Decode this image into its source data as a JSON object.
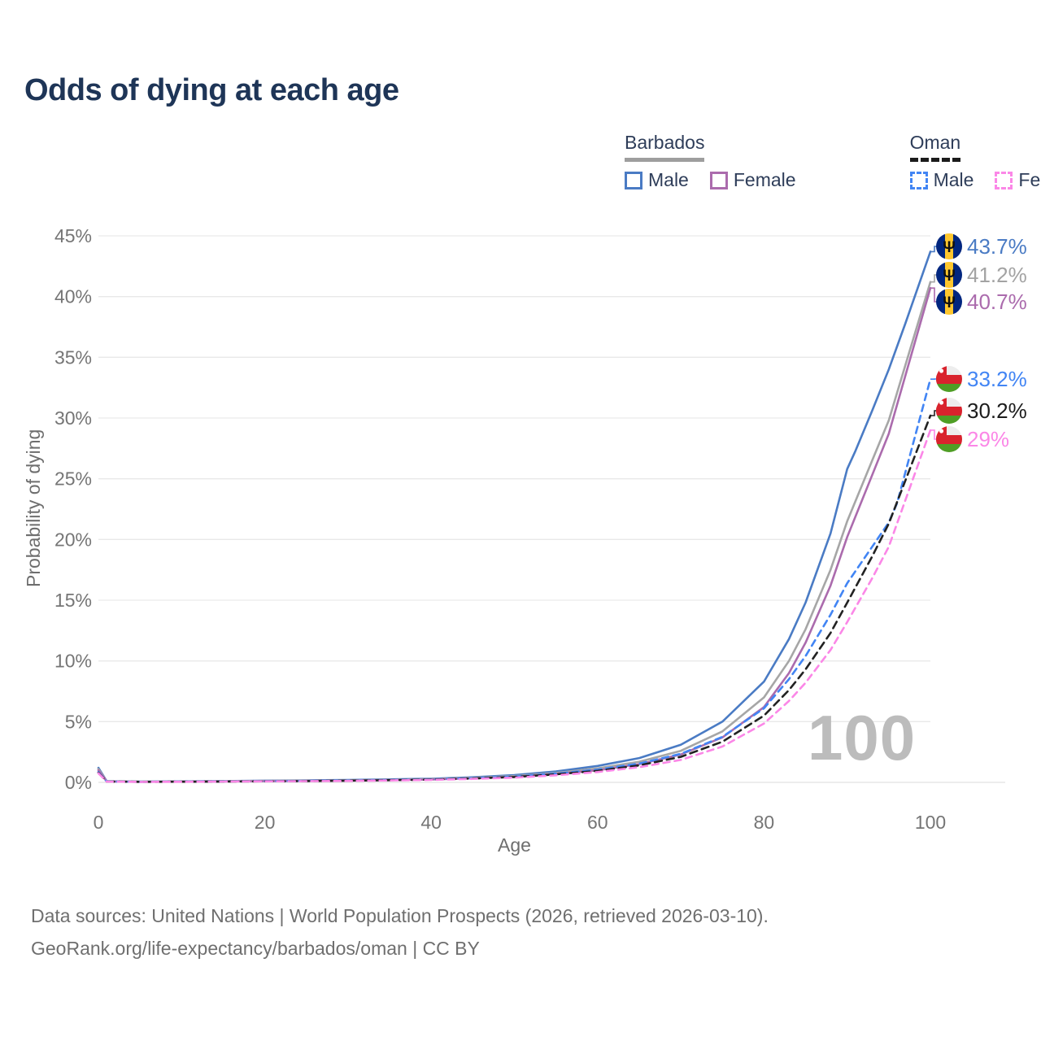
{
  "title": "Odds of dying at each age",
  "watermark": "100",
  "legend": {
    "groups": [
      {
        "label": "Barbados",
        "line_style": "solid",
        "underline_color": "#9e9e9e",
        "items": [
          {
            "label": "Male",
            "color": "#4a7bc4"
          },
          {
            "label": "Female",
            "color": "#ab6bad"
          }
        ]
      },
      {
        "label": "Oman",
        "line_style": "dashed",
        "underline_color": "#1b1b1b",
        "items": [
          {
            "label": "Male",
            "color": "#4285f4"
          },
          {
            "label": "Female",
            "color": "#fb87e7"
          }
        ]
      }
    ]
  },
  "chart_data": {
    "type": "line",
    "title": "Odds of dying at each age",
    "xlabel": "Age",
    "ylabel": "Probability of dying",
    "xlim": [
      0,
      100
    ],
    "ylim": [
      0,
      45
    ],
    "x_ticks": [
      0,
      20,
      40,
      60,
      80,
      100
    ],
    "y_ticks": [
      0,
      5,
      10,
      15,
      20,
      25,
      30,
      35,
      40,
      45
    ],
    "y_tick_labels": [
      "0%",
      "5%",
      "10%",
      "15%",
      "20%",
      "25%",
      "30%",
      "35%",
      "40%",
      "45%"
    ],
    "grid": "horizontal",
    "legend_position": "top-right",
    "series": [
      {
        "name": "Barbados Male",
        "country": "Barbados",
        "sex": "Male",
        "color": "#4a7bc4",
        "dash": null,
        "flag": "barbados",
        "end_label": "43.7%",
        "end_value": 43.7,
        "points": [
          [
            0,
            1.2
          ],
          [
            1,
            0.1
          ],
          [
            5,
            0.07
          ],
          [
            10,
            0.08
          ],
          [
            15,
            0.11
          ],
          [
            20,
            0.14
          ],
          [
            25,
            0.17
          ],
          [
            30,
            0.2
          ],
          [
            35,
            0.25
          ],
          [
            40,
            0.3
          ],
          [
            45,
            0.42
          ],
          [
            50,
            0.6
          ],
          [
            55,
            0.9
          ],
          [
            60,
            1.35
          ],
          [
            65,
            2.0
          ],
          [
            70,
            3.1
          ],
          [
            75,
            5.0
          ],
          [
            80,
            8.3
          ],
          [
            83,
            11.8
          ],
          [
            85,
            14.8
          ],
          [
            88,
            20.5
          ],
          [
            90,
            25.8
          ],
          [
            91,
            27.3
          ],
          [
            93,
            30.6
          ],
          [
            95,
            34.0
          ],
          [
            97,
            37.8
          ],
          [
            100,
            43.7
          ]
        ]
      },
      {
        "name": "Barbados Both sexes",
        "country": "Barbados",
        "sex": "Both",
        "color": "#a6a6a6",
        "dash": null,
        "flag": "barbados",
        "end_label": "41.2%",
        "end_value": 41.2,
        "points": [
          [
            0,
            1.1
          ],
          [
            1,
            0.09
          ],
          [
            5,
            0.06
          ],
          [
            10,
            0.07
          ],
          [
            15,
            0.1
          ],
          [
            20,
            0.12
          ],
          [
            25,
            0.15
          ],
          [
            30,
            0.17
          ],
          [
            35,
            0.21
          ],
          [
            40,
            0.27
          ],
          [
            45,
            0.38
          ],
          [
            50,
            0.52
          ],
          [
            55,
            0.78
          ],
          [
            60,
            1.15
          ],
          [
            65,
            1.7
          ],
          [
            70,
            2.6
          ],
          [
            75,
            4.2
          ],
          [
            80,
            7.0
          ],
          [
            83,
            10.0
          ],
          [
            85,
            12.6
          ],
          [
            88,
            17.5
          ],
          [
            90,
            21.5
          ],
          [
            93,
            26.5
          ],
          [
            95,
            29.8
          ],
          [
            100,
            41.2
          ]
        ]
      },
      {
        "name": "Barbados Female",
        "country": "Barbados",
        "sex": "Female",
        "color": "#ab6bad",
        "dash": null,
        "flag": "barbados",
        "end_label": "40.7%",
        "end_value": 40.7,
        "points": [
          [
            0,
            1.0
          ],
          [
            1,
            0.08
          ],
          [
            5,
            0.05
          ],
          [
            10,
            0.06
          ],
          [
            15,
            0.08
          ],
          [
            20,
            0.1
          ],
          [
            25,
            0.12
          ],
          [
            30,
            0.15
          ],
          [
            35,
            0.19
          ],
          [
            40,
            0.24
          ],
          [
            45,
            0.34
          ],
          [
            50,
            0.46
          ],
          [
            55,
            0.7
          ],
          [
            60,
            1.0
          ],
          [
            65,
            1.5
          ],
          [
            70,
            2.3
          ],
          [
            75,
            3.7
          ],
          [
            80,
            6.2
          ],
          [
            83,
            9.0
          ],
          [
            85,
            11.5
          ],
          [
            88,
            16.2
          ],
          [
            90,
            20.2
          ],
          [
            93,
            25.3
          ],
          [
            95,
            28.7
          ],
          [
            100,
            40.7
          ]
        ]
      },
      {
        "name": "Oman Male",
        "country": "Oman",
        "sex": "Male",
        "color": "#4285f4",
        "dash": "8 6",
        "flag": "oman",
        "end_label": "33.2%",
        "end_value": 33.2,
        "points": [
          [
            0,
            0.85
          ],
          [
            1,
            0.07
          ],
          [
            5,
            0.05
          ],
          [
            10,
            0.06
          ],
          [
            15,
            0.08
          ],
          [
            20,
            0.1
          ],
          [
            25,
            0.12
          ],
          [
            30,
            0.15
          ],
          [
            35,
            0.19
          ],
          [
            40,
            0.25
          ],
          [
            45,
            0.35
          ],
          [
            50,
            0.48
          ],
          [
            55,
            0.72
          ],
          [
            60,
            1.05
          ],
          [
            65,
            1.55
          ],
          [
            70,
            2.35
          ],
          [
            75,
            3.75
          ],
          [
            80,
            6.1
          ],
          [
            83,
            8.5
          ],
          [
            85,
            10.4
          ],
          [
            88,
            13.8
          ],
          [
            90,
            16.4
          ],
          [
            93,
            19.4
          ],
          [
            95,
            21.4
          ],
          [
            96,
            23.0
          ],
          [
            100,
            33.2
          ]
        ]
      },
      {
        "name": "Oman Both sexes",
        "country": "Oman",
        "sex": "Both",
        "color": "#222222",
        "dash": "9 6",
        "flag": "oman",
        "end_label": "30.2%",
        "end_value": 30.2,
        "points": [
          [
            0,
            0.8
          ],
          [
            1,
            0.065
          ],
          [
            5,
            0.045
          ],
          [
            10,
            0.055
          ],
          [
            15,
            0.07
          ],
          [
            20,
            0.09
          ],
          [
            25,
            0.11
          ],
          [
            30,
            0.14
          ],
          [
            35,
            0.18
          ],
          [
            40,
            0.23
          ],
          [
            45,
            0.32
          ],
          [
            50,
            0.44
          ],
          [
            55,
            0.66
          ],
          [
            60,
            0.95
          ],
          [
            65,
            1.4
          ],
          [
            70,
            2.1
          ],
          [
            75,
            3.35
          ],
          [
            80,
            5.5
          ],
          [
            83,
            7.6
          ],
          [
            85,
            9.3
          ],
          [
            88,
            12.3
          ],
          [
            90,
            14.8
          ],
          [
            93,
            18.6
          ],
          [
            95,
            21.3
          ],
          [
            100,
            30.2
          ]
        ]
      },
      {
        "name": "Oman Female",
        "country": "Oman",
        "sex": "Female",
        "color": "#fb87e7",
        "dash": "8 6",
        "flag": "oman",
        "end_label": "29%",
        "end_value": 29.0,
        "points": [
          [
            0,
            0.75
          ],
          [
            1,
            0.06
          ],
          [
            5,
            0.04
          ],
          [
            10,
            0.05
          ],
          [
            15,
            0.065
          ],
          [
            20,
            0.08
          ],
          [
            25,
            0.1
          ],
          [
            30,
            0.12
          ],
          [
            35,
            0.16
          ],
          [
            40,
            0.2
          ],
          [
            45,
            0.29
          ],
          [
            50,
            0.39
          ],
          [
            55,
            0.58
          ],
          [
            60,
            0.85
          ],
          [
            65,
            1.25
          ],
          [
            70,
            1.85
          ],
          [
            75,
            2.95
          ],
          [
            80,
            4.85
          ],
          [
            83,
            6.7
          ],
          [
            85,
            8.2
          ],
          [
            88,
            10.9
          ],
          [
            90,
            13.2
          ],
          [
            93,
            16.8
          ],
          [
            95,
            19.4
          ],
          [
            100,
            29.0
          ]
        ]
      }
    ]
  },
  "footer": {
    "line1": "Data sources: United Nations | World Population Prospects (2026, retrieved 2026-03-10).",
    "line2": "GeoRank.org/life-expectancy/barbados/oman | CC BY"
  }
}
